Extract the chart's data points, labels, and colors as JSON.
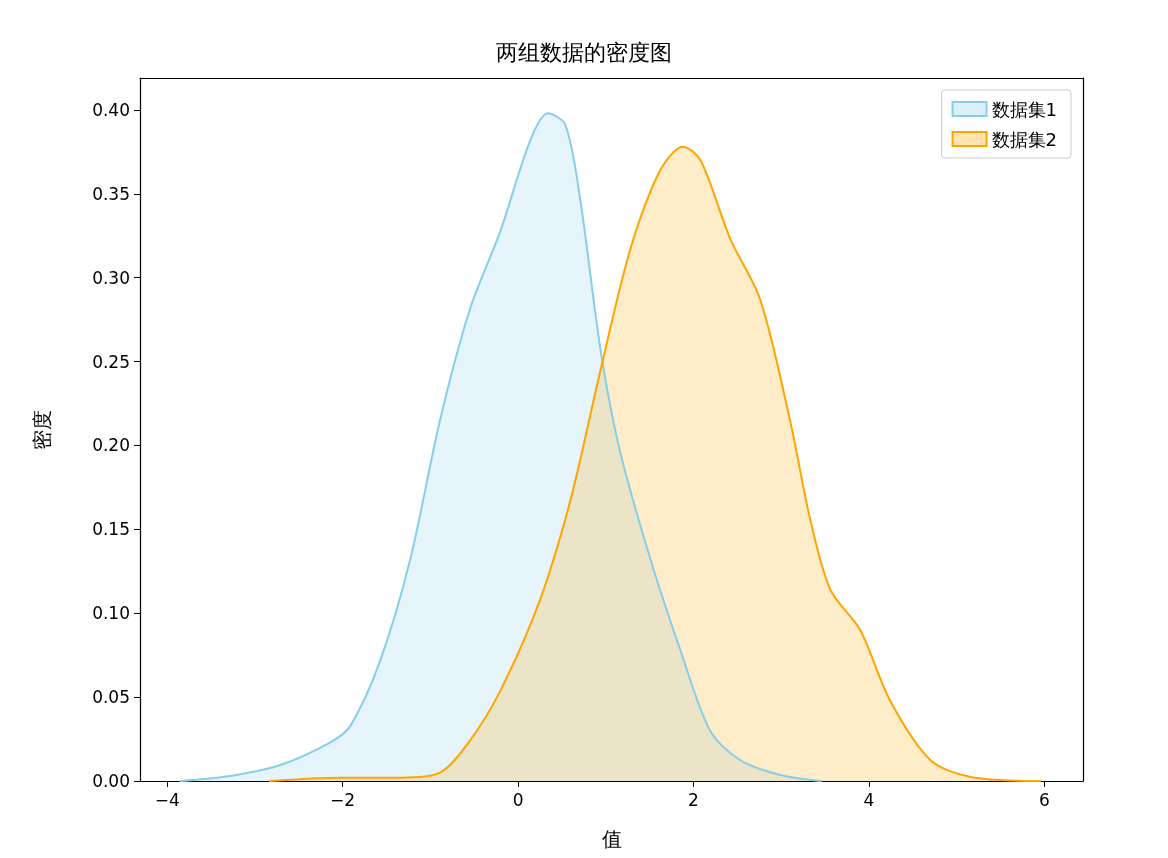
{
  "chart_data": {
    "type": "area",
    "title": "两组数据的密度图",
    "xlabel": "值",
    "ylabel": "密度",
    "xlim": [
      -4.31,
      6.44
    ],
    "ylim": [
      0,
      0.419
    ],
    "xticks": [
      {
        "value": -4,
        "label": "−4"
      },
      {
        "value": -2,
        "label": "−2"
      },
      0,
      2,
      4,
      6
    ],
    "yticks": [
      {
        "value": 0,
        "label": "0.00"
      },
      {
        "value": 0.05,
        "label": "0.05"
      },
      {
        "value": 0.1,
        "label": "0.10"
      },
      {
        "value": 0.15,
        "label": "0.15"
      },
      {
        "value": 0.2,
        "label": "0.20"
      },
      {
        "value": 0.25,
        "label": "0.25"
      },
      {
        "value": 0.3,
        "label": "0.30"
      },
      {
        "value": 0.35,
        "label": "0.35"
      },
      {
        "value": 0.4,
        "label": "0.40"
      }
    ],
    "grid": false,
    "legend": "top right",
    "marker": "none",
    "line_style": "solid",
    "series": [
      {
        "name": "数据集1",
        "color": "#87ceeb",
        "x": [
          -3.85,
          -3.28,
          -2.71,
          -2.14,
          -1.91,
          -1.57,
          -1.23,
          -0.89,
          -0.55,
          -0.2,
          0.14,
          0.34,
          0.54,
          0.71,
          0.94,
          1.16,
          1.51,
          1.85,
          2.19,
          2.53,
          2.99,
          3.45
        ],
        "values": [
          0,
          0.003,
          0.0095,
          0.023,
          0.033,
          0.072,
          0.132,
          0.215,
          0.281,
          0.328,
          0.382,
          0.398,
          0.391,
          0.346,
          0.257,
          0.197,
          0.132,
          0.078,
          0.03,
          0.0125,
          0.0036,
          0
        ]
      },
      {
        "name": "数据集2",
        "color": "#ffa500",
        "x": [
          -2.83,
          -2.03,
          -1.34,
          -0.89,
          -0.55,
          -0.2,
          0.25,
          0.6,
          0.94,
          1.28,
          1.62,
          1.88,
          2.08,
          2.42,
          2.76,
          3.1,
          3.33,
          3.56,
          3.9,
          4.24,
          4.7,
          5.16,
          5.95
        ],
        "values": [
          0,
          0.002,
          0.002,
          0.005,
          0.024,
          0.054,
          0.108,
          0.168,
          0.245,
          0.317,
          0.364,
          0.378,
          0.37,
          0.323,
          0.287,
          0.215,
          0.156,
          0.114,
          0.09,
          0.048,
          0.0125,
          0.0024,
          0
        ]
      }
    ]
  }
}
